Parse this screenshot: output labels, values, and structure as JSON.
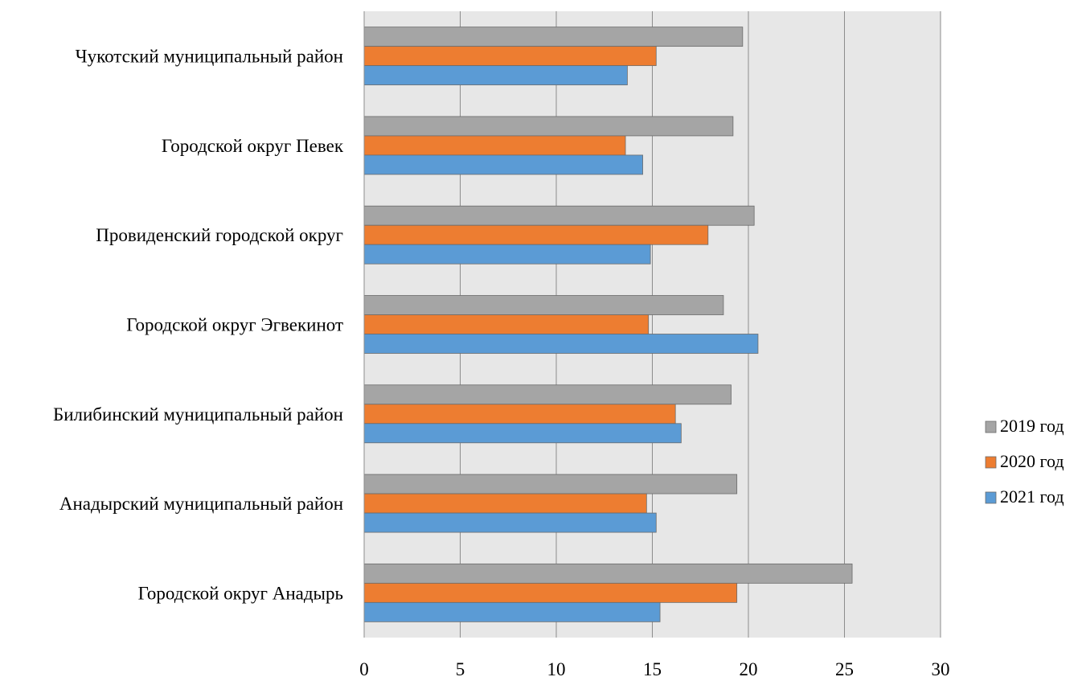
{
  "chart_data": {
    "type": "bar",
    "orientation": "horizontal",
    "categories": [
      "Чукотский муниципальный район",
      "Городской округ Певек",
      "Провиденский городской округ",
      "Городской округ Эгвекинот",
      "Билибинский муниципальный район",
      "Анадырский муниципальный район",
      "Городской округ Анадырь"
    ],
    "series": [
      {
        "name": "2019 год",
        "color": "#a5a5a5",
        "values": [
          19.7,
          19.2,
          20.3,
          18.7,
          19.1,
          19.4,
          25.4
        ]
      },
      {
        "name": "2020 год",
        "color": "#ed7d31",
        "values": [
          15.2,
          13.6,
          17.9,
          14.8,
          16.2,
          14.7,
          19.4
        ]
      },
      {
        "name": "2021 год",
        "color": "#5b9bd5",
        "values": [
          13.7,
          14.5,
          14.9,
          20.5,
          16.5,
          15.2,
          15.4
        ]
      }
    ],
    "xlim": [
      0,
      30
    ],
    "xticks": [
      "0",
      "5",
      "10",
      "15",
      "20",
      "25",
      "30"
    ],
    "grid": true,
    "plot_background": "#e7e7e7",
    "legend_position": "right",
    "title": "",
    "xlabel": "",
    "ylabel": ""
  }
}
